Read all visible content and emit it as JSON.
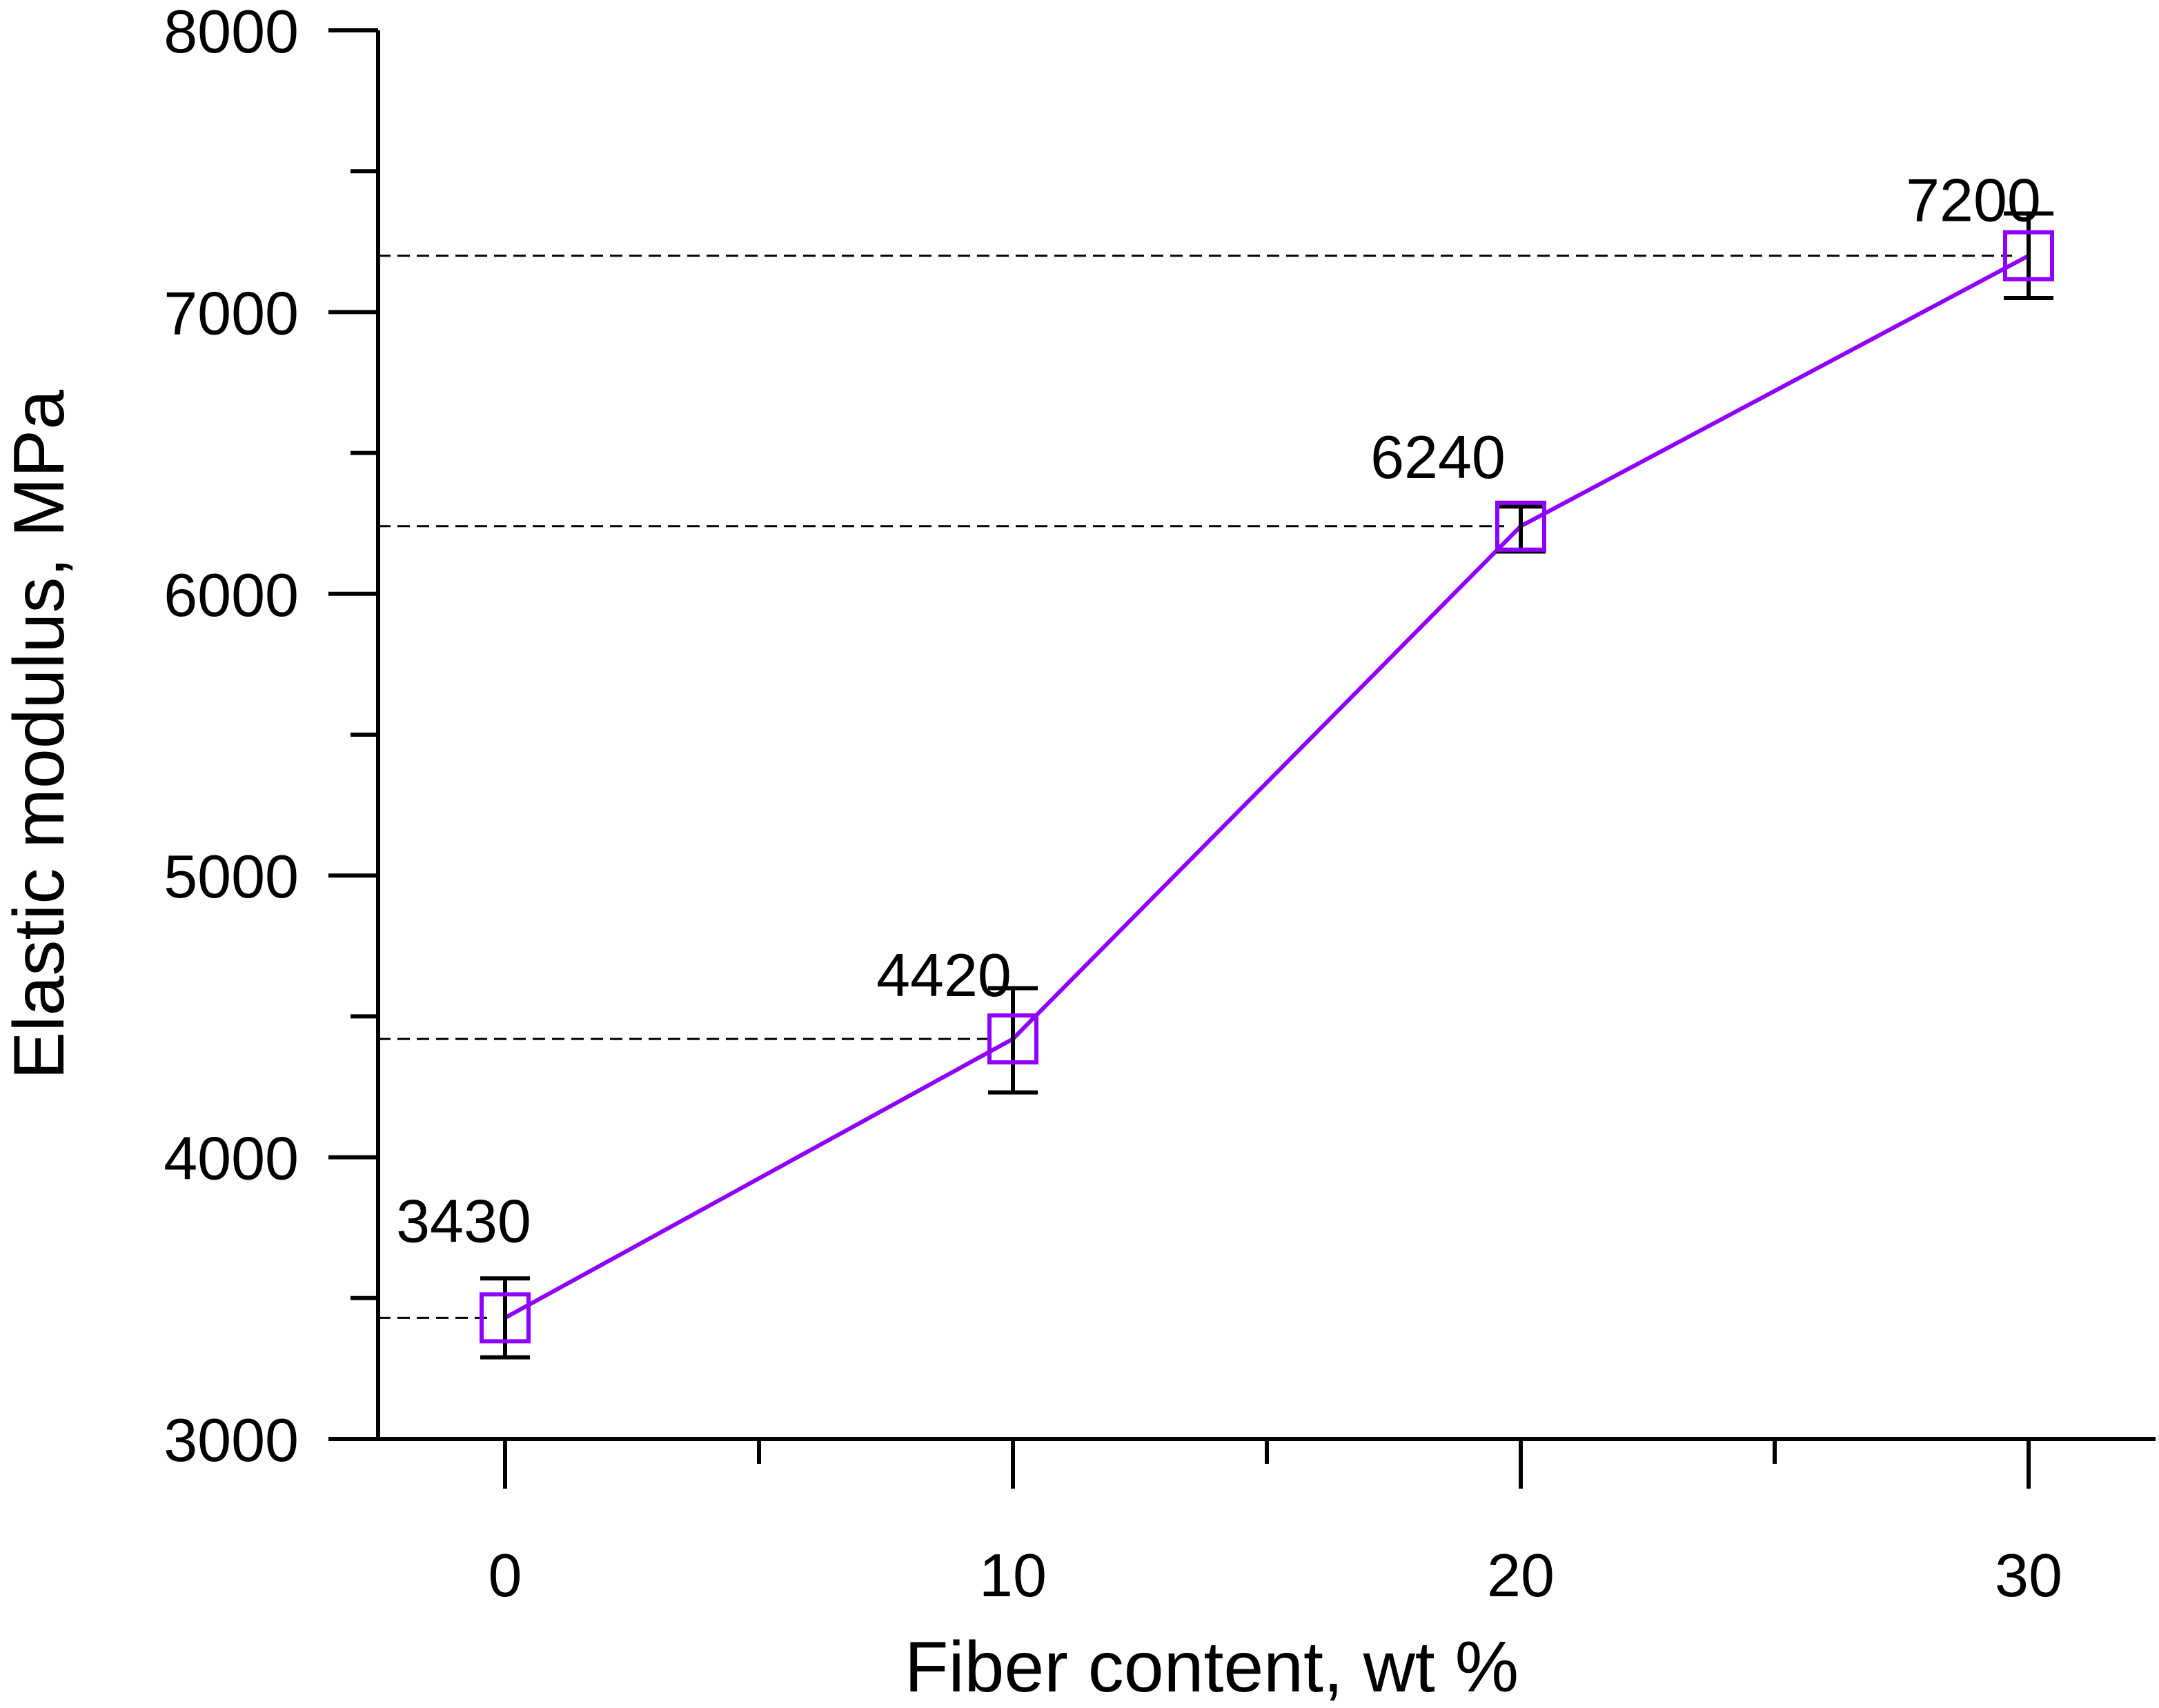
{
  "chart_data": {
    "type": "line",
    "xlabel": "Fiber content, wt %",
    "ylabel": "Elastic modulus, MPa",
    "xlim": [
      -2.5,
      32.5
    ],
    "ylim": [
      3000,
      8000
    ],
    "x_ticks": [
      0,
      10,
      20,
      30
    ],
    "x_tick_labels": [
      "0",
      "10",
      "20",
      "30"
    ],
    "x_minor_ticks": [
      5,
      15,
      25
    ],
    "y_ticks": [
      3000,
      4000,
      5000,
      6000,
      7000,
      8000
    ],
    "y_tick_labels": [
      "3000",
      "4000",
      "5000",
      "6000",
      "7000",
      "8000"
    ],
    "y_minor_ticks": [
      3500,
      4500,
      5500,
      6500,
      7500
    ],
    "grid": false,
    "series": [
      {
        "x": [
          0,
          10,
          20,
          30
        ],
        "y": [
          3430,
          4420,
          6240,
          7200
        ],
        "error_low": [
          3290,
          4230,
          6150,
          7050
        ],
        "error_high": [
          3570,
          4600,
          6310,
          7350
        ],
        "marker": "open-square",
        "color": "#8f00ff"
      }
    ],
    "annotations": [
      {
        "text": "3430",
        "x": 0,
        "y": 3430
      },
      {
        "text": "4420",
        "x": 10,
        "y": 4420
      },
      {
        "text": "6240",
        "x": 20,
        "y": 6240
      },
      {
        "text": "7200",
        "x": 30,
        "y": 7200
      }
    ],
    "reference_lines": {
      "style": "dashed",
      "color": "#000000",
      "y": [
        3430,
        4420,
        6240,
        7200
      ]
    }
  }
}
